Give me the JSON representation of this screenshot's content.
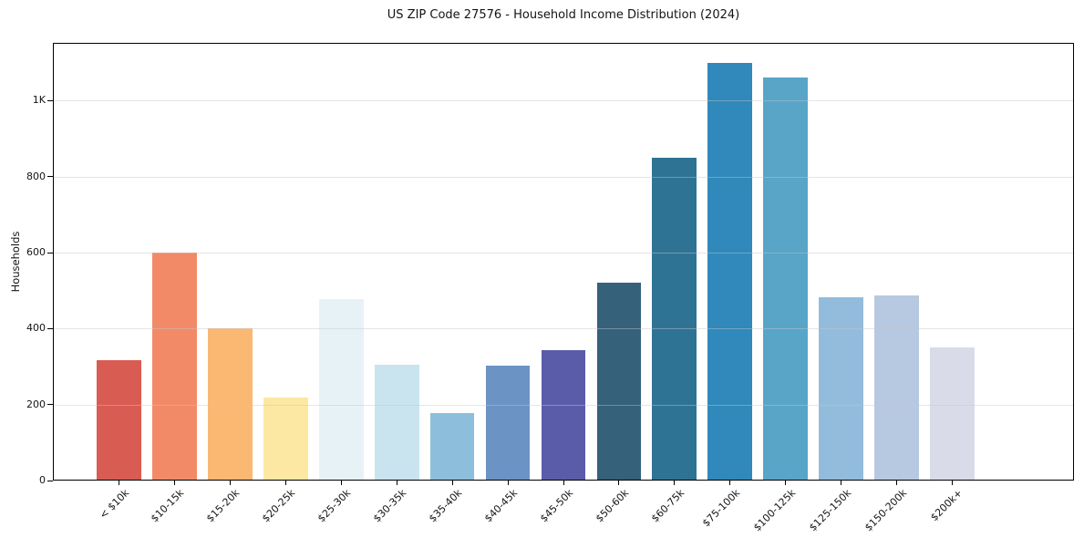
{
  "chart_data": {
    "type": "bar",
    "title": "US ZIP Code 27576 - Household Income Distribution (2024)",
    "xlabel": "",
    "ylabel": "Households",
    "categories": [
      "< $10k",
      "$10-15k",
      "$15-20k",
      "$20-25k",
      "$25-30k",
      "$30-35k",
      "$35-40k",
      "$40-45k",
      "$45-50k",
      "$50-60k",
      "$60-75k",
      "$75-100k",
      "$100-125k",
      "$125-150k",
      "$150-200k",
      "$200k+"
    ],
    "values": [
      317,
      600,
      400,
      218,
      477,
      305,
      178,
      302,
      343,
      520,
      849,
      1100,
      1060,
      483,
      487,
      350
    ],
    "bar_colors": [
      "#d95c53",
      "#f28a68",
      "#fab873",
      "#fce8a2",
      "#e7f2f7",
      "#c9e4ef",
      "#8dbfdc",
      "#6b93c4",
      "#5a5caa",
      "#35617a",
      "#2f7394",
      "#3089ba",
      "#58a5c8",
      "#93bcdc",
      "#b7c9e1",
      "#d9dbe9"
    ],
    "yticks": [
      {
        "label": "0",
        "value": 0
      },
      {
        "label": "200",
        "value": 200
      },
      {
        "label": "400",
        "value": 400
      },
      {
        "label": "600",
        "value": 600
      },
      {
        "label": "800",
        "value": 800
      },
      {
        "label": "1K",
        "value": 1000
      }
    ],
    "ylim": [
      0,
      1152
    ],
    "grid": "horizontal",
    "legend": "none",
    "background_color": "#ffffff",
    "axis_color": "#000000"
  }
}
